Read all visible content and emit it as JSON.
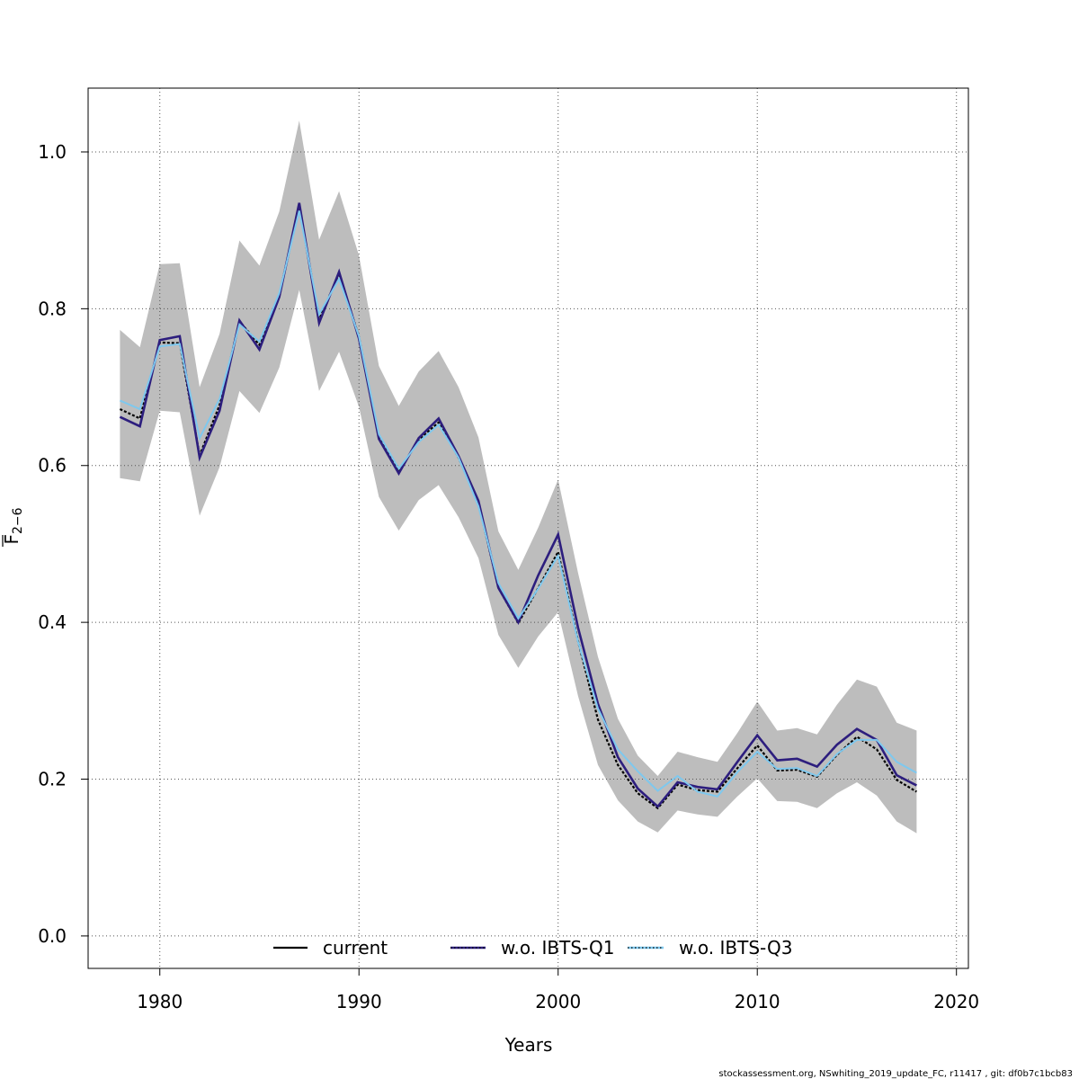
{
  "chart_data": {
    "type": "line",
    "xlabel": "Years",
    "ylabel_main": "F",
    "ylabel_sub": "2−6",
    "xlim": [
      1976.4,
      2020.6
    ],
    "ylim": [
      -0.0414,
      1.0814
    ],
    "x_ticks": [
      1980,
      1990,
      2000,
      2010,
      2020
    ],
    "y_ticks": [
      0.0,
      0.2,
      0.4,
      0.6,
      0.8,
      1.0
    ],
    "x_tick_labels": [
      "1980",
      "1990",
      "2000",
      "2010",
      "2020"
    ],
    "y_tick_labels": [
      "0.0",
      "0.2",
      "0.4",
      "0.6",
      "0.8",
      "1.0"
    ],
    "grid": true,
    "legend_position": "bottom",
    "x": [
      1978,
      1979,
      1980,
      1981,
      1982,
      1983,
      1984,
      1985,
      1986,
      1987,
      1988,
      1989,
      1990,
      1991,
      1992,
      1993,
      1994,
      1995,
      1996,
      1997,
      1998,
      1999,
      2000,
      2001,
      2002,
      2003,
      2004,
      2005,
      2006,
      2007,
      2008,
      2009,
      2010,
      2011,
      2012,
      2013,
      2014,
      2015,
      2016,
      2017,
      2018
    ],
    "band": {
      "upper": [
        0.773,
        0.751,
        0.857,
        0.858,
        0.7,
        0.768,
        0.887,
        0.855,
        0.924,
        1.04,
        0.888,
        0.95,
        0.868,
        0.727,
        0.676,
        0.72,
        0.746,
        0.7,
        0.636,
        0.516,
        0.467,
        0.521,
        0.582,
        0.463,
        0.356,
        0.277,
        0.23,
        0.204,
        0.235,
        0.228,
        0.222,
        0.259,
        0.299,
        0.262,
        0.265,
        0.257,
        0.295,
        0.327,
        0.318,
        0.272,
        0.262
      ],
      "lower": [
        0.584,
        0.58,
        0.67,
        0.668,
        0.536,
        0.598,
        0.695,
        0.667,
        0.725,
        0.824,
        0.695,
        0.745,
        0.675,
        0.56,
        0.517,
        0.556,
        0.575,
        0.534,
        0.482,
        0.384,
        0.342,
        0.382,
        0.413,
        0.306,
        0.218,
        0.173,
        0.146,
        0.132,
        0.16,
        0.155,
        0.152,
        0.178,
        0.201,
        0.172,
        0.171,
        0.163,
        0.182,
        0.196,
        0.179,
        0.146,
        0.131
      ]
    },
    "series": [
      {
        "name": "current",
        "color": "#000000",
        "dash": "solid",
        "values": [
          0.672,
          0.66,
          0.757,
          0.756,
          0.613,
          0.677,
          0.784,
          0.754,
          0.817,
          0.932,
          0.786,
          0.845,
          0.764,
          0.636,
          0.592,
          0.633,
          0.655,
          0.61,
          0.552,
          0.444,
          0.399,
          0.444,
          0.49,
          0.376,
          0.276,
          0.218,
          0.182,
          0.163,
          0.193,
          0.186,
          0.184,
          0.214,
          0.243,
          0.211,
          0.212,
          0.203,
          0.231,
          0.254,
          0.238,
          0.199,
          0.184
        ]
      },
      {
        "name": "w.o. IBTS-Q1",
        "color": "#2d1e7e",
        "dash": "dotted",
        "values": [
          0.662,
          0.65,
          0.76,
          0.765,
          0.61,
          0.67,
          0.785,
          0.748,
          0.815,
          0.935,
          0.782,
          0.847,
          0.762,
          0.634,
          0.59,
          0.635,
          0.66,
          0.612,
          0.555,
          0.444,
          0.4,
          0.46,
          0.512,
          0.393,
          0.296,
          0.228,
          0.188,
          0.165,
          0.196,
          0.19,
          0.187,
          0.222,
          0.256,
          0.224,
          0.226,
          0.216,
          0.244,
          0.264,
          0.25,
          0.205,
          0.192
        ]
      },
      {
        "name": "w.o. IBTS-Q3",
        "color": "#7ec8ee",
        "dash": "dotted",
        "values": [
          0.683,
          0.672,
          0.752,
          0.755,
          0.635,
          0.685,
          0.78,
          0.758,
          0.82,
          0.925,
          0.793,
          0.838,
          0.765,
          0.64,
          0.596,
          0.63,
          0.652,
          0.61,
          0.548,
          0.45,
          0.405,
          0.443,
          0.485,
          0.375,
          0.29,
          0.238,
          0.21,
          0.185,
          0.204,
          0.184,
          0.178,
          0.209,
          0.235,
          0.213,
          0.214,
          0.204,
          0.232,
          0.25,
          0.25,
          0.222,
          0.208
        ]
      }
    ]
  },
  "footer": {
    "note": "stockassessment.org, NSwhiting_2019_update_FC, r11417 , git: df0b7c1bcb83"
  }
}
